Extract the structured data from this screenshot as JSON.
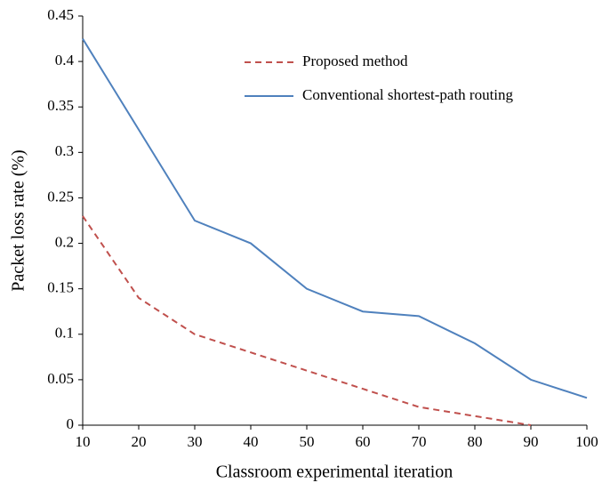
{
  "chart_data": {
    "type": "line",
    "x": [
      10,
      20,
      30,
      40,
      50,
      60,
      70,
      80,
      90,
      100
    ],
    "series": [
      {
        "name": "Proposed method",
        "color": "#c0504d",
        "dash": true,
        "values": [
          0.23,
          0.14,
          0.1,
          0.08,
          0.06,
          0.04,
          0.02,
          0.01,
          0.0,
          null
        ]
      },
      {
        "name": "Conventional shortest-path routing",
        "color": "#4f81bd",
        "dash": false,
        "values": [
          0.425,
          0.325,
          0.225,
          0.2,
          0.15,
          0.125,
          0.12,
          0.09,
          0.05,
          0.03
        ]
      }
    ],
    "xlabel": "Classroom experimental iteration",
    "ylabel": "Packet loss rate (%)",
    "xlim": [
      10,
      100
    ],
    "xticks": [
      10,
      20,
      30,
      40,
      50,
      60,
      70,
      80,
      90,
      100
    ],
    "ylim": [
      0,
      0.45
    ],
    "yticks": [
      0,
      0.05,
      0.1,
      0.15,
      0.2,
      0.25,
      0.3,
      0.35,
      0.4,
      0.45
    ],
    "grid": false,
    "legend": "top"
  }
}
